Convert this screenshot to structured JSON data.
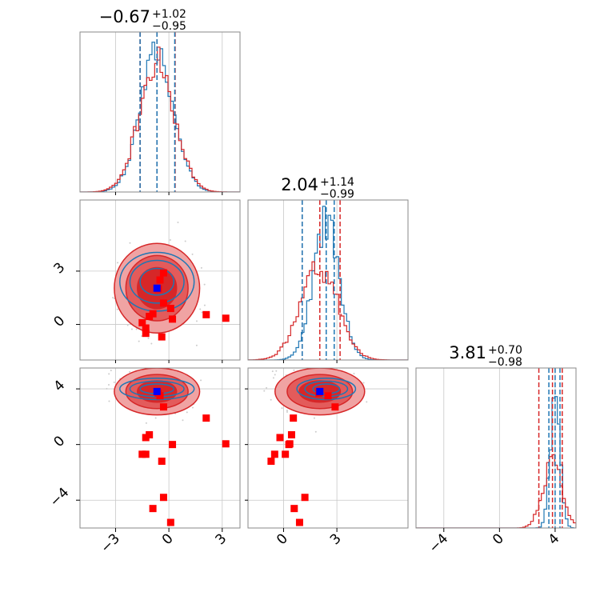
{
  "chart_data": {
    "type": "corner",
    "grid": true,
    "colors": {
      "red": "#d62728",
      "red_fill_outer": "#f0a3a3",
      "red_fill_mid": "#e35b5b",
      "red_fill_inner": "#d62728",
      "blue": "#1f77b4",
      "truth_marker": "#0000ff",
      "sample_marker": "#ff0000",
      "scatter_points": "#cccccc"
    },
    "parameters": [
      {
        "title": {
          "median": "-0.67",
          "plus": "+1.02",
          "minus": "-0.95"
        },
        "range": [
          -5,
          4
        ],
        "ticks": [
          -3,
          0,
          3
        ],
        "tick_labels": [
          "-3",
          "0",
          "3"
        ],
        "hist_center": -0.67,
        "hist_width_blue": 0.95,
        "hist_width_red": 1.0,
        "quantiles_red": [
          -1.62,
          -0.67,
          0.35
        ],
        "quantiles_blue": [
          -1.62,
          -0.67,
          0.33
        ]
      },
      {
        "title": {
          "median": "2.04",
          "plus": "+1.14",
          "minus": "-0.99"
        },
        "range": [
          -2,
          7
        ],
        "ticks": [
          0,
          3
        ],
        "tick_labels": [
          "0",
          "3"
        ],
        "hist_center_blue": 2.4,
        "hist_width_blue": 0.75,
        "hist_center_red": 2.0,
        "hist_width_red": 1.05,
        "quantiles_red": [
          1.05,
          2.04,
          3.18
        ],
        "quantiles_blue": [
          1.05,
          2.4,
          2.85
        ]
      },
      {
        "title": {
          "median": "3.81",
          "plus": "+0.70",
          "minus": "-0.98"
        },
        "range": [
          -6,
          5.5
        ],
        "ticks": [
          -4,
          0,
          4
        ],
        "tick_labels": [
          "-4",
          "0",
          "4"
        ],
        "hist_center_blue": 4.0,
        "hist_width_blue": 0.35,
        "hist_center_red": 3.81,
        "hist_width_red": 0.7,
        "quantiles_red": [
          2.83,
          3.81,
          4.51
        ],
        "quantiles_blue": [
          3.55,
          4.0,
          4.35
        ]
      }
    ],
    "truth": [
      -0.67,
      2.04,
      3.81
    ],
    "samples": [
      [
        -0.5,
        2.5,
        3.5
      ],
      [
        -0.6,
        2.0,
        3.7
      ],
      [
        -0.3,
        2.9,
        2.7
      ],
      [
        -1.1,
        0.45,
        0.7
      ],
      [
        -1.3,
        -0.2,
        0.5
      ],
      [
        -1.3,
        -0.5,
        -0.7
      ],
      [
        -0.4,
        -0.7,
        -1.2
      ],
      [
        0.2,
        0.3,
        0.0
      ],
      [
        2.1,
        0.55,
        1.9
      ],
      [
        3.2,
        0.35,
        0.05
      ],
      [
        -0.3,
        1.2,
        -3.8
      ],
      [
        -0.9,
        0.6,
        -4.6
      ],
      [
        0.1,
        0.9,
        -5.6
      ],
      [
        -1.5,
        0.1,
        -0.7
      ]
    ]
  }
}
